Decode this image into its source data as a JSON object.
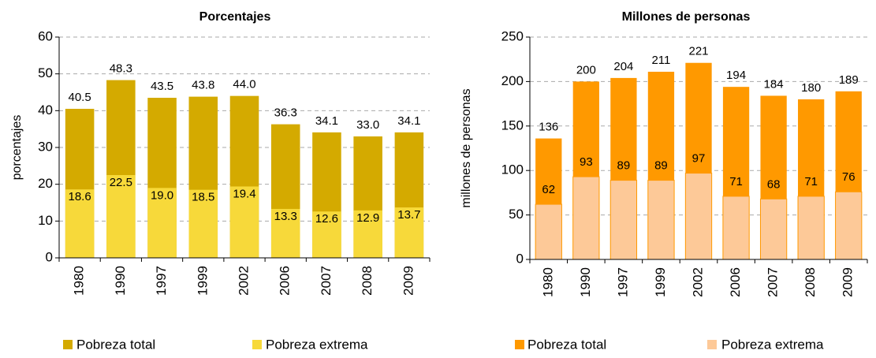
{
  "chart_data": [
    {
      "type": "bar",
      "title": "Porcentajes",
      "ylabel": "porcentajes",
      "categories": [
        "1980",
        "1990",
        "1997",
        "1999",
        "2002",
        "2006",
        "2007",
        "2008",
        "2009"
      ],
      "series": [
        {
          "name": "Pobreza total",
          "color": "#d4aa00",
          "values": [
            40.5,
            48.3,
            43.5,
            43.8,
            44.0,
            36.3,
            34.1,
            33.0,
            34.1
          ],
          "value_labels": [
            "40.5",
            "48.3",
            "43.5",
            "43.8",
            "44.0",
            "36.3",
            "34.1",
            "33.0",
            "34.1"
          ]
        },
        {
          "name": "Pobreza extrema",
          "color": "#f7d93a",
          "values": [
            18.6,
            22.5,
            19.0,
            18.5,
            19.4,
            13.3,
            12.6,
            12.9,
            13.7
          ],
          "value_labels": [
            "18.6",
            "22.5",
            "19.0",
            "18.5",
            "19.4",
            "13.3",
            "12.6",
            "12.9",
            "13.7"
          ]
        }
      ],
      "ylim": [
        0,
        60
      ],
      "yticks": [
        0,
        10,
        20,
        30,
        40,
        50,
        60
      ],
      "grid": true
    },
    {
      "type": "bar",
      "title": "Millones de personas",
      "ylabel": "millones de personas",
      "categories": [
        "1980",
        "1990",
        "1997",
        "1999",
        "2002",
        "2006",
        "2007",
        "2008",
        "2009"
      ],
      "series": [
        {
          "name": "Pobreza total",
          "color": "#ff9900",
          "values": [
            136,
            200,
            204,
            211,
            221,
            194,
            184,
            180,
            189
          ]
        },
        {
          "name": "Pobreza extrema",
          "color": "#fdc998",
          "values": [
            62,
            93,
            89,
            89,
            97,
            71,
            68,
            71,
            76
          ]
        }
      ],
      "ylim": [
        0,
        250
      ],
      "yticks": [
        0,
        50,
        100,
        150,
        200,
        250
      ],
      "grid": true
    }
  ]
}
